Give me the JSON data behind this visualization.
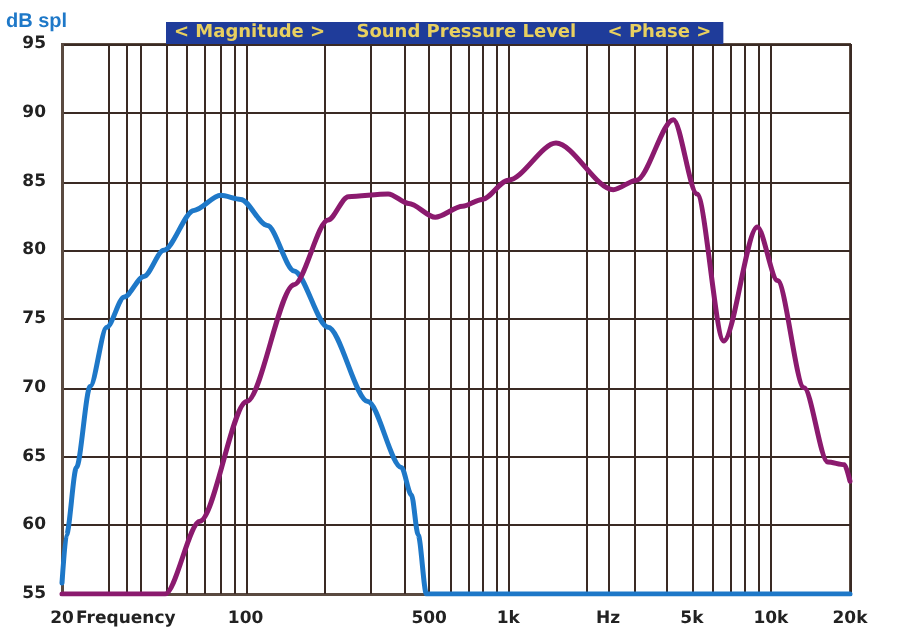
{
  "chart_data": {
    "type": "line",
    "title": "< Magnitude >     Sound Pressure Level     < Phase >",
    "ylabel": "dB spl",
    "log": "x",
    "grid": true,
    "marker": "none",
    "line_style": "solid",
    "xlim": [
      20,
      20000
    ],
    "ylim": [
      55,
      95
    ],
    "xticks": [
      20,
      {
        "value": 30,
        "label": null
      },
      {
        "value": 35,
        "label": "Frequency"
      },
      {
        "value": 40,
        "label": null
      },
      {
        "value": 50,
        "label": null
      },
      {
        "value": 60,
        "label": null
      },
      {
        "value": 70,
        "label": null
      },
      {
        "value": 80,
        "label": null
      },
      {
        "value": 90,
        "label": null
      },
      100,
      {
        "value": 200,
        "label": null
      },
      {
        "value": 300,
        "label": null
      },
      {
        "value": 400,
        "label": null
      },
      500,
      {
        "value": 600,
        "label": null
      },
      {
        "value": 700,
        "label": null
      },
      {
        "value": 800,
        "label": null
      },
      {
        "value": 900,
        "label": null
      },
      {
        "value": 1000,
        "label": "1k"
      },
      {
        "value": 2000,
        "label": null
      },
      {
        "value": 2400,
        "label": "Hz"
      },
      {
        "value": 3000,
        "label": null
      },
      {
        "value": 4000,
        "label": null
      },
      {
        "value": 5000,
        "label": "5k"
      },
      {
        "value": 6000,
        "label": null
      },
      {
        "value": 7000,
        "label": null
      },
      {
        "value": 8000,
        "label": null
      },
      {
        "value": 9000,
        "label": null
      },
      {
        "value": 10000,
        "label": "10k"
      },
      {
        "value": 20000,
        "label": "20k"
      }
    ],
    "yticks": [
      55,
      60,
      65,
      70,
      75,
      80,
      85,
      90,
      95
    ],
    "series": [
      {
        "color": "#1e78c8",
        "x": [
          20,
          20.8,
          22.7,
          25.6,
          29.6,
          34.5,
          41,
          48.8,
          63.6,
          80.3,
          95.9,
          121,
          153,
          206,
          292,
          392,
          428,
          454,
          488,
          20000
        ],
        "values": [
          55.8,
          59.3,
          64.2,
          70.1,
          74.4,
          76.6,
          78.1,
          80,
          82.9,
          84,
          83.7,
          81.8,
          78.5,
          74.4,
          69,
          64.2,
          62.2,
          59.3,
          55,
          55
        ]
      },
      {
        "color": "#8b1a6e",
        "x": [
          20,
          49.4,
          67,
          101,
          153,
          206,
          246,
          349,
          418,
          527,
          670,
          796,
          1000,
          1520,
          2510,
          3080,
          4250,
          5230,
          6610,
          8870,
          10590,
          13370,
          16440,
          19050,
          20000
        ],
        "values": [
          55,
          55,
          60.3,
          69,
          77.5,
          82.2,
          83.9,
          84.1,
          83.4,
          82.4,
          83.2,
          83.7,
          85.1,
          87.8,
          84.4,
          85.1,
          89.5,
          84.1,
          73.4,
          81.7,
          77.8,
          70,
          64.6,
          64.4,
          63.2
        ]
      }
    ]
  }
}
